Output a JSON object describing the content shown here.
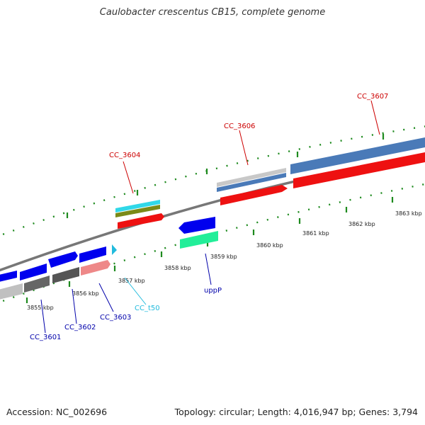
{
  "title": "Caulobacter crescentus CB15, complete genome",
  "footer": {
    "accession": "Accession: NC_002696",
    "topology": "Topology: circular; Length: 4,016,947 bp; Genes: 3,794"
  },
  "kbp_labels": [
    "3855 kbp",
    "3856 kbp",
    "3857 kbp",
    "3858 kbp",
    "3859 kbp",
    "3860 kbp",
    "3861 kbp",
    "3862 kbp",
    "3863 kbp"
  ],
  "genes": {
    "forward": [
      "CC_3604",
      "CC_3606",
      "CC_3607"
    ],
    "reverse": [
      "CC_3601",
      "CC_3602",
      "CC_3603",
      "CC_t50",
      "uppP"
    ]
  },
  "colors": {
    "forward_label": "#cc0000",
    "reverse_label": "#0000aa",
    "trna_label": "#22bbdd",
    "cds": "#ee0000",
    "gene_reverse": "#0000ee",
    "backbone": "#888888",
    "tick": "#228822"
  }
}
